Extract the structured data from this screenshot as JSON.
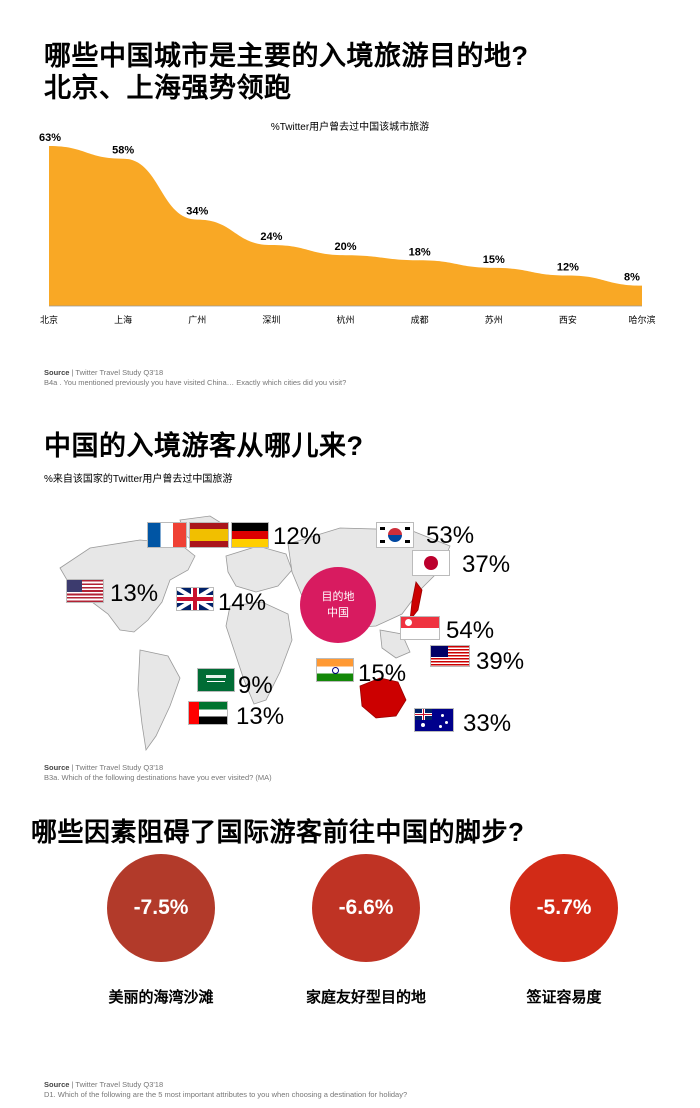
{
  "section1": {
    "title_line1": "哪些中国城市是主要的入境旅游目的地?",
    "title_line2": "北京、上海强势领跑",
    "source_label": "Source",
    "source_text": " | Twitter Travel Study Q3'18",
    "source_note": "B4a . You mentioned previously you have visited China… Exactly which cities did you visit?"
  },
  "chart_data": {
    "type": "area",
    "title": "%Twitter用户曾去过中国该城市旅游",
    "categories": [
      "北京",
      "上海",
      "广州",
      "深圳",
      "杭州",
      "成都",
      "苏州",
      "西安",
      "哈尔滨"
    ],
    "values": [
      63,
      58,
      34,
      24,
      20,
      18,
      15,
      12,
      8
    ],
    "value_labels": [
      "63%",
      "58%",
      "34%",
      "24%",
      "20%",
      "18%",
      "15%",
      "12%",
      "8%"
    ],
    "ylim": [
      0,
      63
    ],
    "color": "#F9A825",
    "grid": false
  },
  "section2": {
    "title": "中国的入境游客从哪儿来?",
    "subtitle": "%来自该国家的Twitter用户曾去过中国旅游",
    "center_label_line1": "目的地",
    "center_label_line2": "中国",
    "center_color": "#D81B60",
    "eu_pct": "12%",
    "kr_pct": "53%",
    "jp_pct": "37%",
    "us_pct": "13%",
    "uk_pct": "14%",
    "sg_pct": "54%",
    "my_pct": "39%",
    "in_pct": "15%",
    "sa_pct": "9%",
    "ae_pct": "13%",
    "au_pct": "33%",
    "source_label": "Source",
    "source_text": " | Twitter Travel Study Q3'18",
    "source_note": "B3a. Which of the following destinations have you ever visited? (MA)"
  },
  "section3": {
    "title": "哪些因素阻碍了国际游客前往中国的脚步?",
    "factors": [
      {
        "value": "-7.5%",
        "label": "美丽的海湾沙滩",
        "color": "#B23A2A"
      },
      {
        "value": "-6.6%",
        "label": "家庭友好型目的地",
        "color": "#BF3324"
      },
      {
        "value": "-5.7%",
        "label": "签证容易度",
        "color": "#D22B17"
      }
    ],
    "source_label": "Source",
    "source_text": " | Twitter Travel Study Q3'18",
    "source_note": "D1. Which of the following are the 5 most important attributes to you when choosing a destination for holiday?"
  }
}
